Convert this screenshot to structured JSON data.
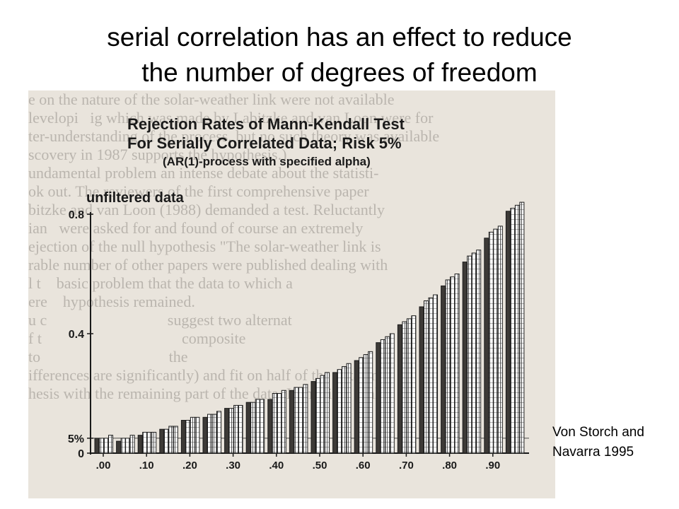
{
  "slide": {
    "title_line1": "serial correlation has an effect to reduce",
    "title_line2": "the number of degrees of freedom",
    "credit_line1": "Von Storch and",
    "credit_line2": "Navarra 1995"
  },
  "background_text": [
    "e on the nature of the solar-weather link were not available",
    "levelopi   ig which was made by Labitzke and van Loon were for",
    "ter-understanding of the process, but no such theory was available",
    "scovery in 1987 supports the hypothesis.)",
    "undamental problem an intense debate about the statisti-",
    "ok out. The reviewers of the first comprehensive paper",
    "bitzke and van Loon (1988) demanded a test. Reluctantly",
    "ian   were asked for and found of course an extremely",
    "ejection of the null hypothesis \"The solar-weather link is",
    "rable number of other papers were published dealing with",
    "l t    basic problem that the data to which a",
    "ere    hypothesis remained.",
    "",
    "u c                               suggest two alternat",
    "f t                                    composite",
    "to                                 the",
    "ifferences are significantly) and fit on half of the data and",
    "hesis with the remaining part of the data. If the time scale"
  ],
  "chart_data": {
    "type": "bar",
    "title": "Rejection Rates of Mann-Kendall Test",
    "title_line2": "For Serially Correlated Data; Risk 5%",
    "subtitle": "(AR(1)-process with specified alpha)",
    "panel_label": "unfiltered data",
    "xlabel": "",
    "ylabel": "",
    "ylim": [
      0,
      0.8
    ],
    "yticks": [
      "0.8",
      "0.4",
      "5%",
      "0"
    ],
    "ytick_values": [
      0.8,
      0.4,
      0.05,
      0
    ],
    "xticks": [
      ".00",
      ".10",
      ".20",
      ".30",
      ".40",
      ".50",
      ".60",
      ".70",
      ".80",
      ".90"
    ],
    "xtick_values": [
      0.0,
      0.1,
      0.2,
      0.3,
      0.4,
      0.5,
      0.6,
      0.7,
      0.8,
      0.9
    ],
    "x": [
      0.0,
      0.05,
      0.1,
      0.15,
      0.2,
      0.25,
      0.3,
      0.35,
      0.4,
      0.45,
      0.5,
      0.55,
      0.6,
      0.65,
      0.7,
      0.75,
      0.8,
      0.85,
      0.9,
      0.95
    ],
    "series": [
      {
        "values": [
          0.05,
          0.04,
          0.06,
          0.08,
          0.11,
          0.12,
          0.15,
          0.17,
          0.18,
          0.21,
          0.24,
          0.27,
          0.31,
          0.37,
          0.43,
          0.49,
          0.56,
          0.64,
          0.72,
          0.81
        ]
      },
      {
        "values": [
          0.05,
          0.05,
          0.07,
          0.08,
          0.11,
          0.13,
          0.15,
          0.17,
          0.2,
          0.22,
          0.25,
          0.28,
          0.32,
          0.38,
          0.44,
          0.51,
          0.58,
          0.66,
          0.74,
          0.82
        ]
      },
      {
        "values": [
          0.05,
          0.05,
          0.07,
          0.09,
          0.12,
          0.13,
          0.16,
          0.18,
          0.2,
          0.22,
          0.26,
          0.29,
          0.33,
          0.39,
          0.45,
          0.52,
          0.59,
          0.67,
          0.75,
          0.83
        ]
      },
      {
        "values": [
          0.06,
          0.06,
          0.07,
          0.09,
          0.12,
          0.14,
          0.16,
          0.18,
          0.21,
          0.23,
          0.27,
          0.3,
          0.34,
          0.4,
          0.46,
          0.53,
          0.6,
          0.68,
          0.76,
          0.84
        ]
      }
    ],
    "grid": false,
    "legend": "none",
    "colors": {
      "solid": "#3d3a37",
      "hatched": "#ffffff",
      "ink": "#1a1a1a"
    }
  }
}
